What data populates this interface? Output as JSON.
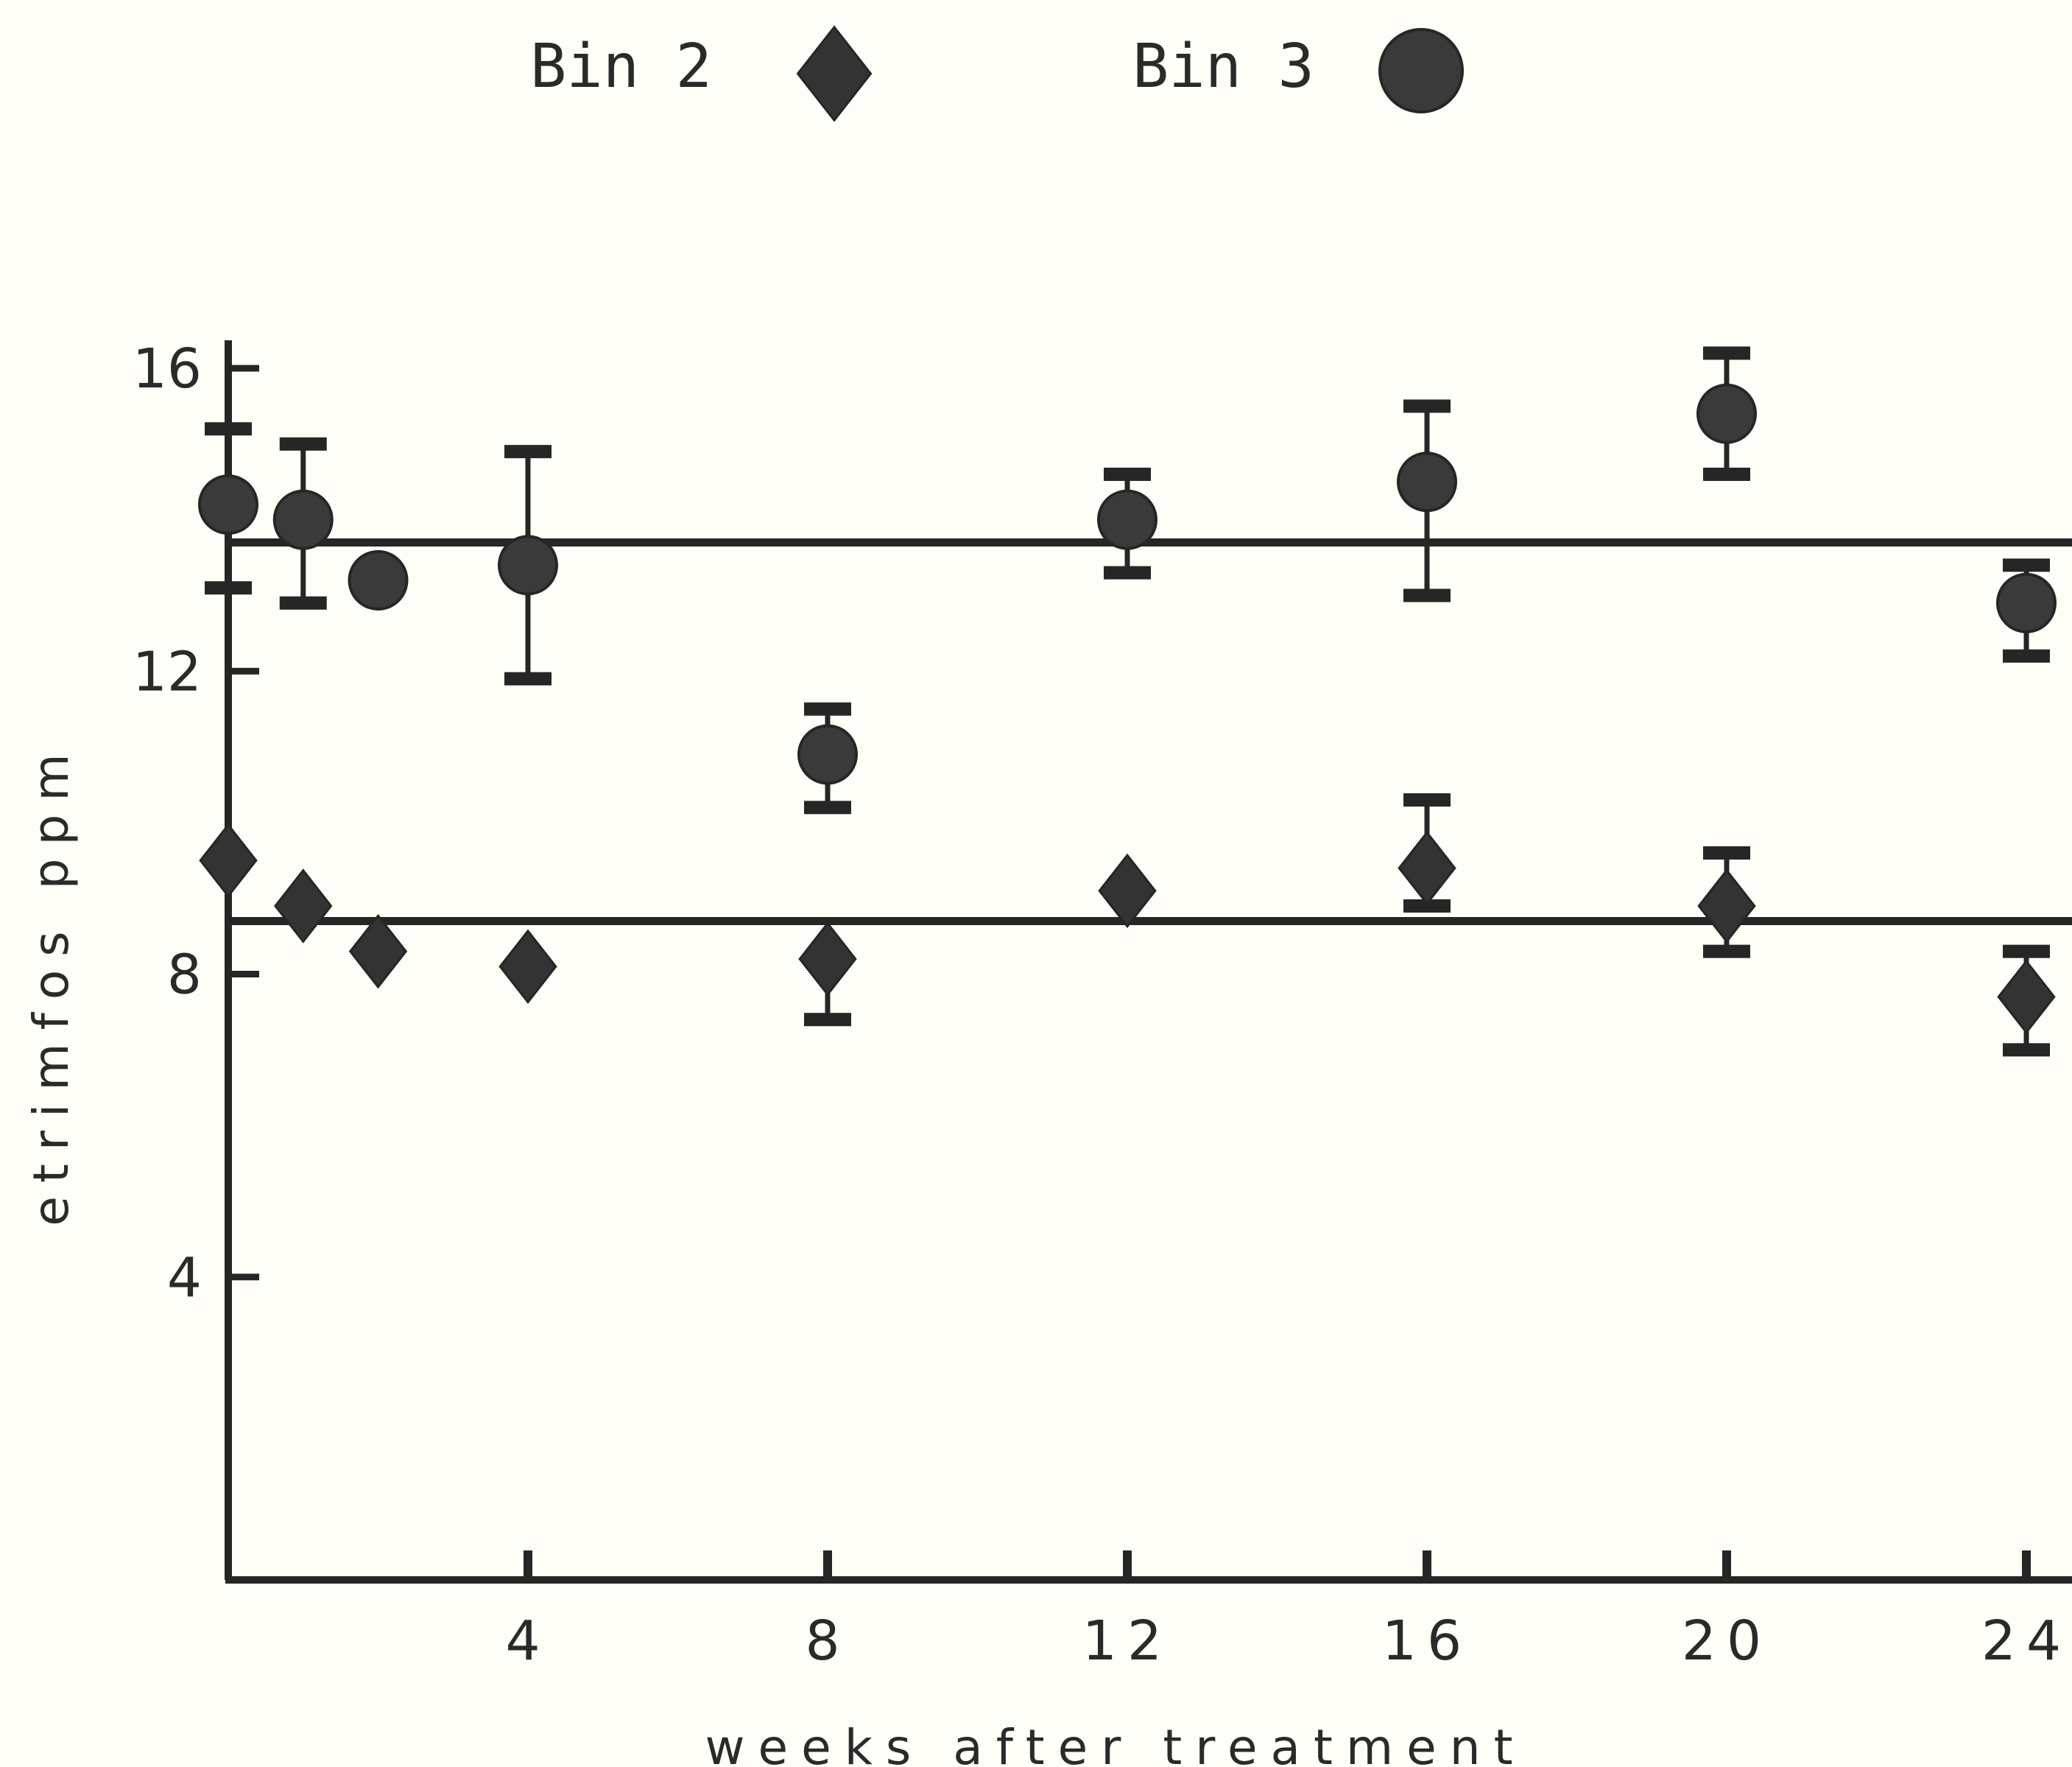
{
  "chart_data": {
    "type": "scatter",
    "title": "",
    "xlabel": "weeks after treatment",
    "ylabel": "etrimfos ppm",
    "xlim": [
      0,
      24
    ],
    "ylim": [
      0,
      16
    ],
    "x_ticks": [
      4,
      8,
      12,
      16,
      20,
      24
    ],
    "y_ticks": [
      4,
      8,
      12,
      16
    ],
    "x_tick_labels": [
      "4",
      "8",
      "12",
      "16",
      "20",
      "24"
    ],
    "y_tick_labels": [
      "4",
      "8",
      "12",
      "16"
    ],
    "grid": false,
    "legend_position": "top",
    "series": [
      {
        "name": "Bin 2",
        "marker": "diamond",
        "mean_line": 8.7,
        "points": [
          {
            "x": 0,
            "y": 9.5,
            "err_low": null,
            "err_high": null
          },
          {
            "x": 1,
            "y": 8.9,
            "err_low": null,
            "err_high": null
          },
          {
            "x": 2,
            "y": 8.3,
            "err_low": null,
            "err_high": null
          },
          {
            "x": 4,
            "y": 8.1,
            "err_low": null,
            "err_high": null
          },
          {
            "x": 8,
            "y": 8.2,
            "err_low": 7.4,
            "err_high": null
          },
          {
            "x": 12,
            "y": 9.1,
            "err_low": null,
            "err_high": null
          },
          {
            "x": 16,
            "y": 9.4,
            "err_low": 8.9,
            "err_high": 10.3
          },
          {
            "x": 20,
            "y": 8.9,
            "err_low": 8.3,
            "err_high": 9.6
          },
          {
            "x": 24,
            "y": 7.7,
            "err_low": 7.0,
            "err_high": 8.3
          }
        ]
      },
      {
        "name": "Bin 3",
        "marker": "circle",
        "mean_line": 13.7,
        "points": [
          {
            "x": 0,
            "y": 14.2,
            "err_low": 13.1,
            "err_high": 15.2
          },
          {
            "x": 1,
            "y": 14.0,
            "err_low": 12.9,
            "err_high": 15.0
          },
          {
            "x": 2,
            "y": 13.2,
            "err_low": null,
            "err_high": null
          },
          {
            "x": 4,
            "y": 13.4,
            "err_low": 11.9,
            "err_high": 14.9
          },
          {
            "x": 8,
            "y": 10.9,
            "err_low": 10.2,
            "err_high": 11.5
          },
          {
            "x": 12,
            "y": 14.0,
            "err_low": 13.3,
            "err_high": 14.6
          },
          {
            "x": 16,
            "y": 14.5,
            "err_low": 13.0,
            "err_high": 15.5
          },
          {
            "x": 20,
            "y": 15.4,
            "err_low": 14.6,
            "err_high": 16.2
          },
          {
            "x": 24,
            "y": 12.9,
            "err_low": 12.2,
            "err_high": 13.4
          }
        ]
      }
    ]
  }
}
